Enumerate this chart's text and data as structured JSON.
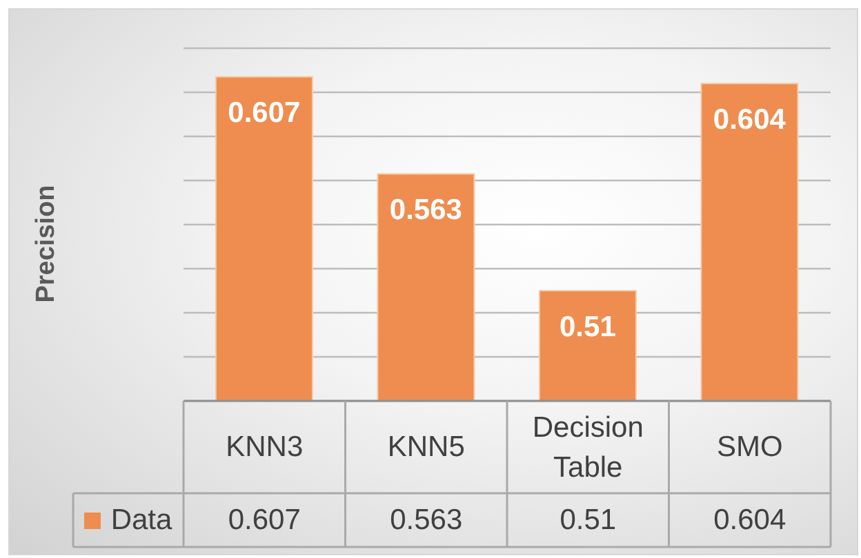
{
  "chart_data": {
    "type": "bar",
    "ylabel": "Precision",
    "categories": [
      "KNN3",
      "KNN5",
      "Decision Table",
      "SMO"
    ],
    "series": [
      {
        "name": "Data",
        "color": "#ee8d4f",
        "values": [
          0.607,
          0.563,
          0.51,
          0.604
        ]
      }
    ],
    "ylim": [
      0.46,
      0.62
    ],
    "yticks": [
      {
        "value": 0.46,
        "label": null
      },
      {
        "value": 0.48,
        "label": null
      },
      {
        "value": 0.5,
        "label": null
      },
      {
        "value": 0.52,
        "label": null
      },
      {
        "value": 0.54,
        "label": null
      },
      {
        "value": 0.56,
        "label": null
      },
      {
        "value": 0.58,
        "label": null
      },
      {
        "value": 0.6,
        "label": null
      },
      {
        "value": 0.62,
        "label": null
      }
    ],
    "grid": "y",
    "legend": "bottom left",
    "tick_labels": "x",
    "data_labels": true,
    "annotations": [
      "0.607",
      "0.563",
      "0.51",
      "0.604"
    ]
  }
}
